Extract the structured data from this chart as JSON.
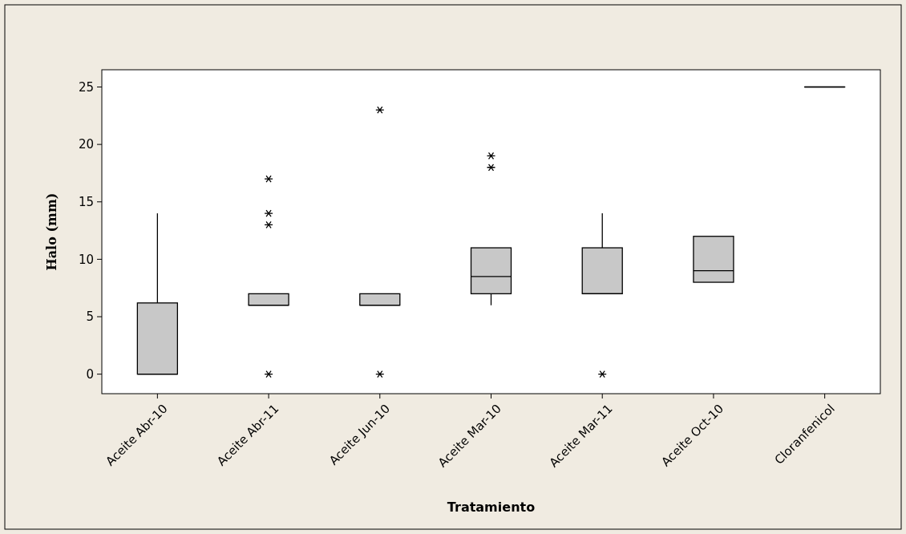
{
  "chart_data": {
    "type": "box",
    "xlabel": "Tratamiento",
    "ylabel": "Halo (mm)",
    "categories": [
      "Aceite Abr-10",
      "Aceite Abr-11",
      "Aceite Jun-10",
      "Aceite Mar-10",
      "Aceite Mar-11",
      "Aceite Oct-10",
      "Cloranfenicol"
    ],
    "boxes": [
      {
        "low": 0,
        "q1": 0,
        "median": 0,
        "q3": 6.2,
        "high": 14
      },
      {
        "low": 6,
        "q1": 6,
        "median": 6,
        "q3": 7,
        "high": 7,
        "outliers": [
          17,
          14,
          13,
          0
        ]
      },
      {
        "low": 6,
        "q1": 6,
        "median": 6,
        "q3": 7,
        "high": 7,
        "outliers": [
          23,
          0
        ]
      },
      {
        "low": 6,
        "q1": 7,
        "median": 8.5,
        "q3": 11,
        "high": 11,
        "outliers": [
          19,
          18
        ]
      },
      {
        "low": 7,
        "q1": 7,
        "median": 7,
        "q3": 11,
        "high": 14,
        "outliers": [
          0
        ]
      },
      {
        "low": 8,
        "q1": 8,
        "median": 9,
        "q3": 12,
        "high": 12
      },
      {
        "low": 25,
        "q1": 25,
        "median": 25,
        "q3": 25,
        "high": 25
      }
    ],
    "color": "#c8c8c8",
    "ylim": [
      -1.7,
      26.5
    ],
    "yticks": [
      0,
      5,
      10,
      15,
      20,
      25
    ]
  }
}
